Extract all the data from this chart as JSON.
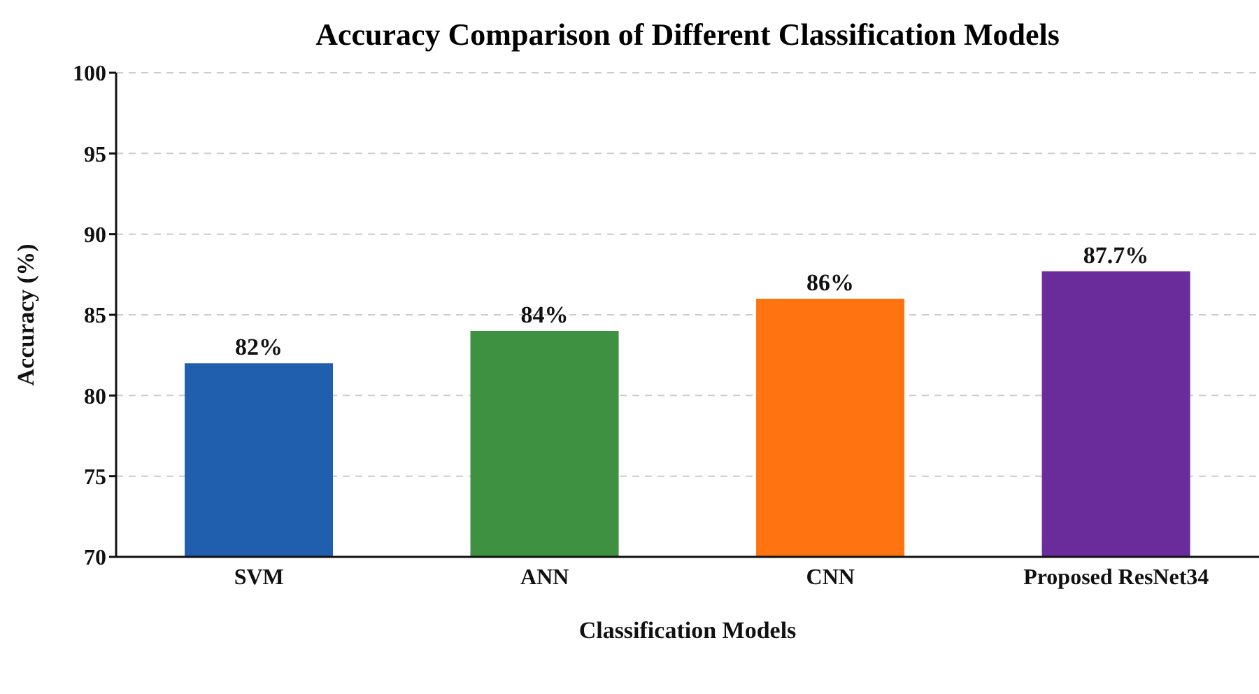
{
  "chart_data": {
    "type": "bar",
    "title": "Accuracy Comparison of Different Classification Models",
    "xlabel": "Classification Models",
    "ylabel": "Accuracy (%)",
    "categories": [
      "SVM",
      "ANN",
      "CNN",
      "Proposed ResNet34"
    ],
    "values": [
      82,
      84,
      86,
      87.7
    ],
    "colors": [
      "#1f5fad",
      "#3f9142",
      "#ff7410",
      "#6a2c9a"
    ],
    "value_labels": [
      "82%",
      "84%",
      "86%",
      "87.7%"
    ],
    "ylim": [
      70,
      100
    ],
    "yticks": [
      70,
      75,
      80,
      85,
      90,
      95,
      100
    ],
    "grid": "y"
  }
}
